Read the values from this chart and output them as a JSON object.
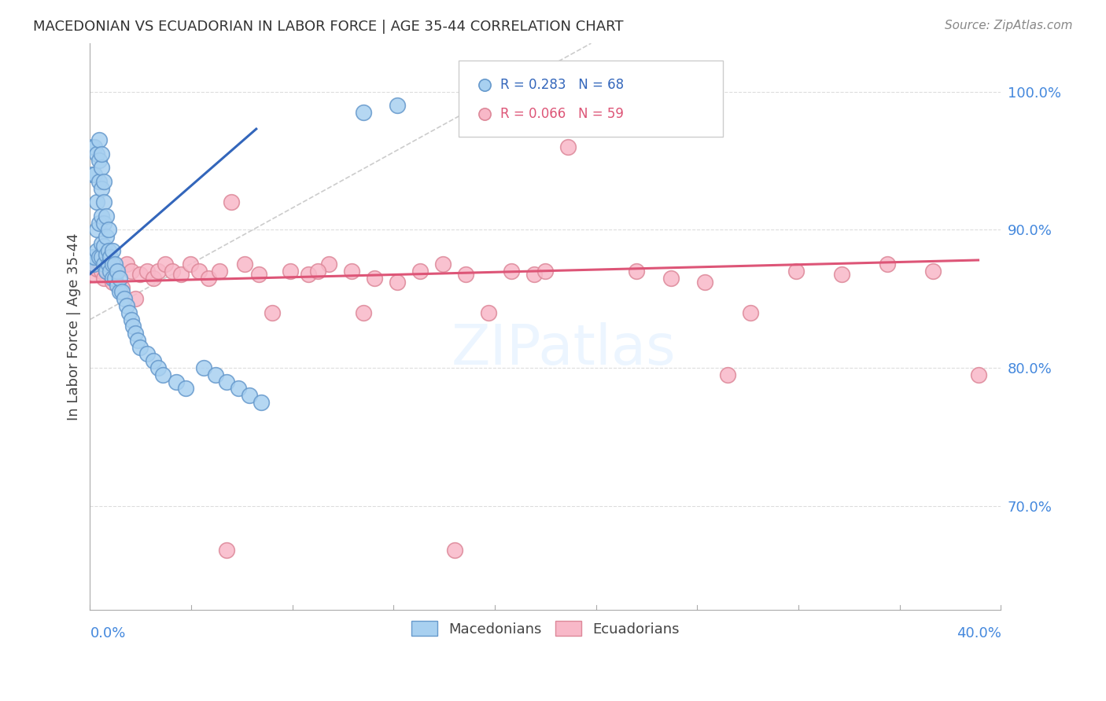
{
  "title": "MACEDONIAN VS ECUADORIAN IN LABOR FORCE | AGE 35-44 CORRELATION CHART",
  "source": "Source: ZipAtlas.com",
  "ylabel": "In Labor Force | Age 35-44",
  "right_yticks": [
    0.7,
    0.8,
    0.9,
    1.0
  ],
  "right_yticklabels": [
    "70.0%",
    "80.0%",
    "90.0%",
    "100.0%"
  ],
  "xmin": 0.0,
  "xmax": 0.4,
  "ymin": 0.625,
  "ymax": 1.035,
  "macedonian_color": "#A8D0F0",
  "ecuadorian_color": "#F8B8C8",
  "macedonian_edge": "#6699CC",
  "ecuadorian_edge": "#DD8899",
  "blue_line_color": "#3366BB",
  "pink_line_color": "#DD5577",
  "ref_line_color": "#CCCCCC",
  "background_color": "#FFFFFF",
  "grid_color": "#DDDDDD",
  "macedonians_x": [
    0.0005,
    0.001,
    0.001,
    0.0015,
    0.002,
    0.002,
    0.002,
    0.003,
    0.003,
    0.003,
    0.003,
    0.004,
    0.004,
    0.004,
    0.004,
    0.004,
    0.005,
    0.005,
    0.005,
    0.005,
    0.005,
    0.005,
    0.006,
    0.006,
    0.006,
    0.006,
    0.006,
    0.007,
    0.007,
    0.007,
    0.007,
    0.008,
    0.008,
    0.008,
    0.009,
    0.009,
    0.01,
    0.01,
    0.01,
    0.011,
    0.011,
    0.012,
    0.012,
    0.013,
    0.013,
    0.014,
    0.015,
    0.016,
    0.017,
    0.018,
    0.019,
    0.02,
    0.021,
    0.022,
    0.025,
    0.028,
    0.03,
    0.032,
    0.038,
    0.042,
    0.05,
    0.055,
    0.06,
    0.065,
    0.07,
    0.075,
    0.12,
    0.135
  ],
  "macedonians_y": [
    0.88,
    0.94,
    0.96,
    0.875,
    0.88,
    0.94,
    0.96,
    0.885,
    0.9,
    0.92,
    0.955,
    0.88,
    0.905,
    0.935,
    0.95,
    0.965,
    0.88,
    0.89,
    0.91,
    0.93,
    0.945,
    0.955,
    0.875,
    0.888,
    0.905,
    0.92,
    0.935,
    0.87,
    0.882,
    0.895,
    0.91,
    0.875,
    0.885,
    0.9,
    0.87,
    0.88,
    0.865,
    0.875,
    0.885,
    0.865,
    0.875,
    0.86,
    0.87,
    0.855,
    0.865,
    0.855,
    0.85,
    0.845,
    0.84,
    0.835,
    0.83,
    0.825,
    0.82,
    0.815,
    0.81,
    0.805,
    0.8,
    0.795,
    0.79,
    0.785,
    0.8,
    0.795,
    0.79,
    0.785,
    0.78,
    0.775,
    0.985,
    0.99
  ],
  "ecuadorians_x": [
    0.001,
    0.002,
    0.003,
    0.004,
    0.005,
    0.006,
    0.007,
    0.008,
    0.009,
    0.01,
    0.012,
    0.014,
    0.016,
    0.018,
    0.02,
    0.022,
    0.025,
    0.028,
    0.03,
    0.033,
    0.036,
    0.04,
    0.044,
    0.048,
    0.052,
    0.057,
    0.062,
    0.068,
    0.074,
    0.08,
    0.088,
    0.096,
    0.105,
    0.115,
    0.125,
    0.135,
    0.145,
    0.155,
    0.165,
    0.175,
    0.185,
    0.195,
    0.21,
    0.225,
    0.24,
    0.255,
    0.27,
    0.29,
    0.31,
    0.33,
    0.35,
    0.37,
    0.39,
    0.12,
    0.2,
    0.28,
    0.1,
    0.06,
    0.16
  ],
  "ecuadorians_y": [
    0.875,
    0.868,
    0.872,
    0.877,
    0.87,
    0.865,
    0.87,
    0.875,
    0.868,
    0.862,
    0.87,
    0.858,
    0.875,
    0.87,
    0.85,
    0.868,
    0.87,
    0.865,
    0.87,
    0.875,
    0.87,
    0.868,
    0.875,
    0.87,
    0.865,
    0.87,
    0.92,
    0.875,
    0.868,
    0.84,
    0.87,
    0.868,
    0.875,
    0.87,
    0.865,
    0.862,
    0.87,
    0.875,
    0.868,
    0.84,
    0.87,
    0.868,
    0.96,
    0.975,
    0.87,
    0.865,
    0.862,
    0.84,
    0.87,
    0.868,
    0.875,
    0.87,
    0.795,
    0.84,
    0.87,
    0.795,
    0.87,
    0.668,
    0.668
  ],
  "blue_line_x0": 0.0,
  "blue_line_y0": 0.868,
  "blue_line_x1": 0.073,
  "blue_line_y1": 0.973,
  "pink_line_x0": 0.0,
  "pink_line_y0": 0.862,
  "pink_line_x1": 0.39,
  "pink_line_y1": 0.878,
  "ref_line_x0": 0.0,
  "ref_line_y0": 0.835,
  "ref_line_x1": 0.22,
  "ref_line_y1": 1.035
}
